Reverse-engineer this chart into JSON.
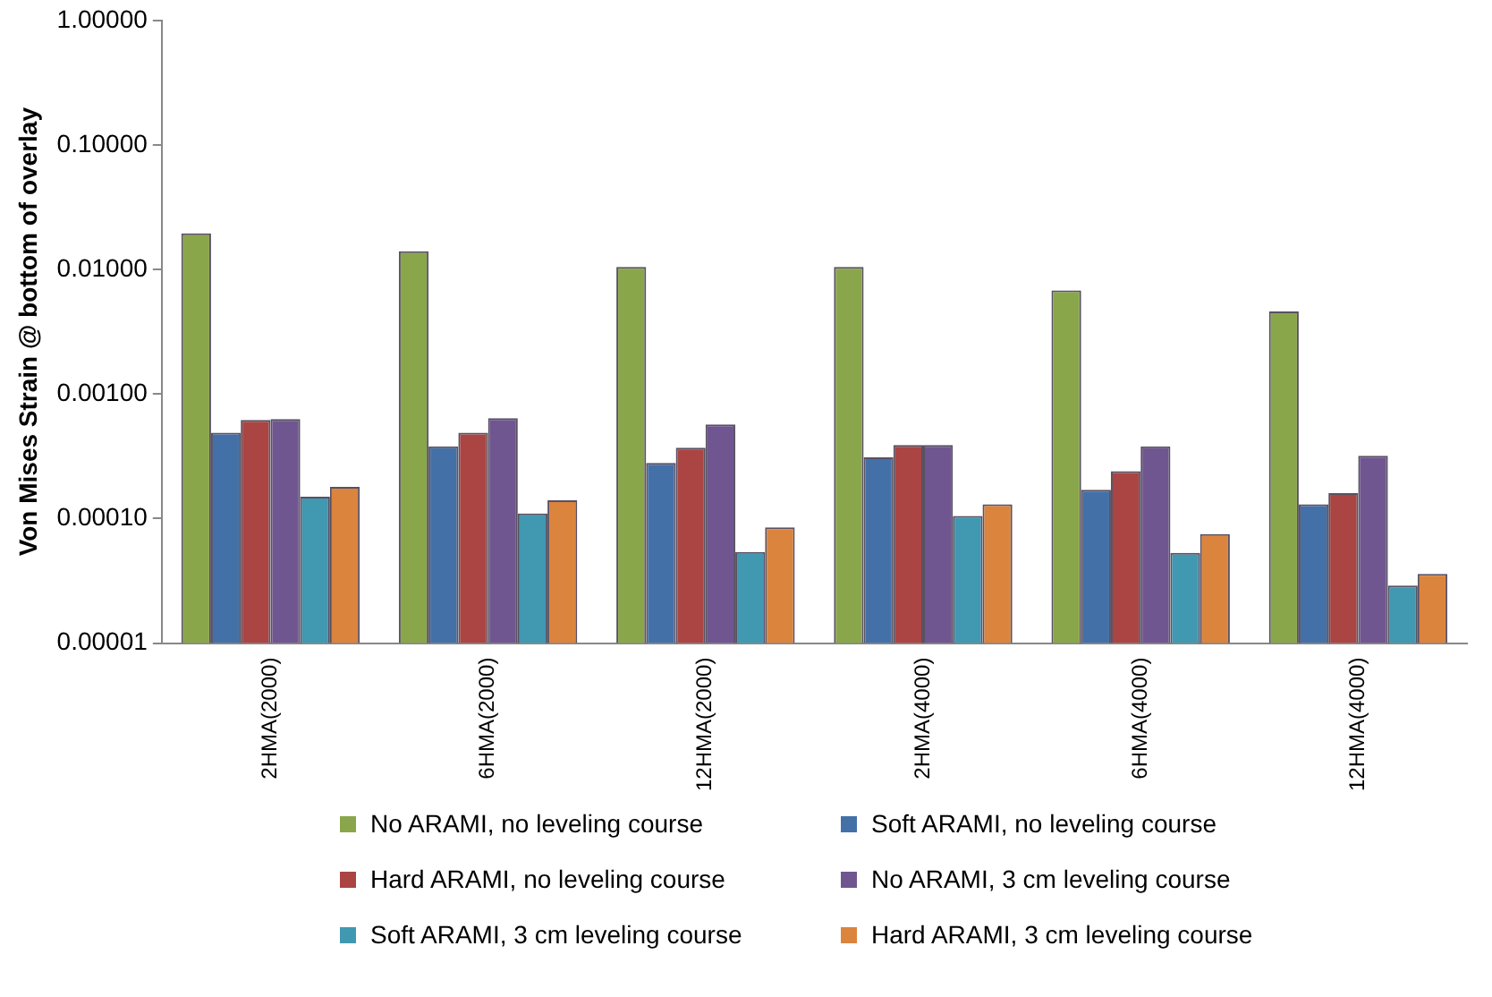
{
  "chart_data": {
    "type": "bar",
    "ylabel": "Von Mises Strain @ bottom of overlay",
    "log": "y",
    "categories": [
      "2HMA(2000)",
      "6HMA(2000)",
      "12HMA(2000)",
      "2HMA(4000)",
      "6HMA(4000)",
      "12HMA(4000)"
    ],
    "series": [
      {
        "name": "No ARAMI, no leveling course",
        "color": "#8aa64b",
        "values": [
          0.0195,
          0.014,
          0.0105,
          0.0105,
          0.0068,
          0.0046
        ]
      },
      {
        "name": "Soft ARAMI, no leveling course",
        "color": "#4470a8",
        "values": [
          0.00049,
          0.00038,
          0.00028,
          0.00031,
          0.00017,
          0.00013
        ]
      },
      {
        "name": "Hard ARAMI, no leveling course",
        "color": "#aa4543",
        "values": [
          0.00062,
          0.00049,
          0.00037,
          0.00039,
          0.00024,
          0.00016
        ]
      },
      {
        "name": "No ARAMI, 3 cm leveling course",
        "color": "#6f5690",
        "values": [
          0.00063,
          0.00064,
          0.00057,
          0.00039,
          0.00038,
          0.00032
        ]
      },
      {
        "name": "Soft ARAMI, 3 cm leveling course",
        "color": "#4198b1",
        "values": [
          0.00015,
          0.00011,
          5.4e-05,
          0.000105,
          5.3e-05,
          2.9e-05
        ]
      },
      {
        "name": "Hard ARAMI, 3 cm leveling course",
        "color": "#db843d",
        "values": [
          0.00018,
          0.00014,
          8.5e-05,
          0.00013,
          7.5e-05,
          3.6e-05
        ]
      }
    ],
    "ylim": [
      1e-05,
      1
    ],
    "yticks": [
      {
        "value": 1e-05,
        "label": "0.00001"
      },
      {
        "value": 0.0001,
        "label": "0.00010"
      },
      {
        "value": 0.001,
        "label": "0.00100"
      },
      {
        "value": 0.01,
        "label": "0.01000"
      },
      {
        "value": 0.1,
        "label": "0.10000"
      },
      {
        "value": 1,
        "label": "1.00000"
      }
    ],
    "grid": false,
    "legend": "bottom"
  }
}
